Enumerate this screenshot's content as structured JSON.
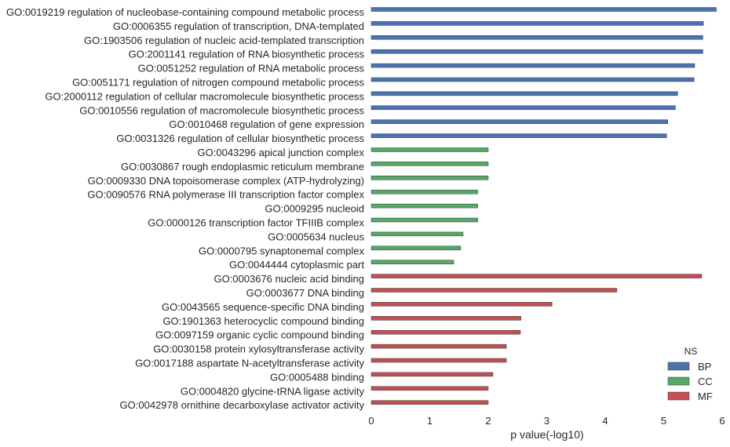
{
  "chart_data": {
    "type": "bar",
    "orientation": "horizontal",
    "xlabel": "p value(-log10)",
    "ylabel": "",
    "xlim": [
      0,
      6
    ],
    "xticks": [
      "0",
      "1",
      "2",
      "3",
      "4",
      "5",
      "6"
    ],
    "grid": false,
    "legend": {
      "title": "NS",
      "placement": "bottom-right",
      "entries": [
        {
          "name": "BP",
          "color": "#4c72b0"
        },
        {
          "name": "CC",
          "color": "#55a868"
        },
        {
          "name": "MF",
          "color": "#c44e52"
        }
      ]
    },
    "bars": [
      {
        "label": "GO:0019219 regulation of nucleobase-containing compound metabolic process",
        "value": 5.9,
        "ns": "BP"
      },
      {
        "label": "GO:0006355 regulation of transcription, DNA-templated",
        "value": 5.68,
        "ns": "BP"
      },
      {
        "label": "GO:1903506 regulation of nucleic acid-templated transcription",
        "value": 5.67,
        "ns": "BP"
      },
      {
        "label": "GO:2001141 regulation of RNA biosynthetic process",
        "value": 5.67,
        "ns": "BP"
      },
      {
        "label": "GO:0051252 regulation of RNA metabolic process",
        "value": 5.53,
        "ns": "BP"
      },
      {
        "label": "GO:0051171 regulation of nitrogen compound metabolic process",
        "value": 5.52,
        "ns": "BP"
      },
      {
        "label": "GO:2000112 regulation of cellular macromolecule biosynthetic process",
        "value": 5.24,
        "ns": "BP"
      },
      {
        "label": "GO:0010556 regulation of macromolecule biosynthetic process",
        "value": 5.2,
        "ns": "BP"
      },
      {
        "label": "GO:0010468 regulation of gene expression",
        "value": 5.07,
        "ns": "BP"
      },
      {
        "label": "GO:0031326 regulation of cellular biosynthetic process",
        "value": 5.05,
        "ns": "BP"
      },
      {
        "label": "GO:0043296 apical junction complex",
        "value": 2.0,
        "ns": "CC"
      },
      {
        "label": "GO:0030867 rough endoplasmic reticulum membrane",
        "value": 2.0,
        "ns": "CC"
      },
      {
        "label": "GO:0009330 DNA topoisomerase complex (ATP-hydrolyzing)",
        "value": 2.0,
        "ns": "CC"
      },
      {
        "label": "GO:0090576 RNA polymerase III transcription factor complex",
        "value": 1.82,
        "ns": "CC"
      },
      {
        "label": "GO:0009295 nucleoid",
        "value": 1.82,
        "ns": "CC"
      },
      {
        "label": "GO:0000126 transcription factor TFIIIB complex",
        "value": 1.82,
        "ns": "CC"
      },
      {
        "label": "GO:0005634 nucleus",
        "value": 1.57,
        "ns": "CC"
      },
      {
        "label": "GO:0000795 synaptonemal complex",
        "value": 1.53,
        "ns": "CC"
      },
      {
        "label": "GO:0044444 cytoplasmic part",
        "value": 1.41,
        "ns": "CC"
      },
      {
        "label": "GO:0003676 nucleic acid binding",
        "value": 5.65,
        "ns": "MF"
      },
      {
        "label": "GO:0003677 DNA binding",
        "value": 4.2,
        "ns": "MF"
      },
      {
        "label": "GO:0043565 sequence-specific DNA binding",
        "value": 3.09,
        "ns": "MF"
      },
      {
        "label": "GO:1901363 heterocyclic compound binding",
        "value": 2.56,
        "ns": "MF"
      },
      {
        "label": "GO:0097159 organic cyclic compound binding",
        "value": 2.55,
        "ns": "MF"
      },
      {
        "label": "GO:0030158 protein xylosyltransferase activity",
        "value": 2.31,
        "ns": "MF"
      },
      {
        "label": "GO:0017188 aspartate N-acetyltransferase activity",
        "value": 2.31,
        "ns": "MF"
      },
      {
        "label": "GO:0005488 binding",
        "value": 2.08,
        "ns": "MF"
      },
      {
        "label": "GO:0004820 glycine-tRNA ligase activity",
        "value": 2.0,
        "ns": "MF"
      },
      {
        "label": "GO:0042978 ornithine decarboxylase activator activity",
        "value": 2.0,
        "ns": "MF"
      }
    ]
  }
}
